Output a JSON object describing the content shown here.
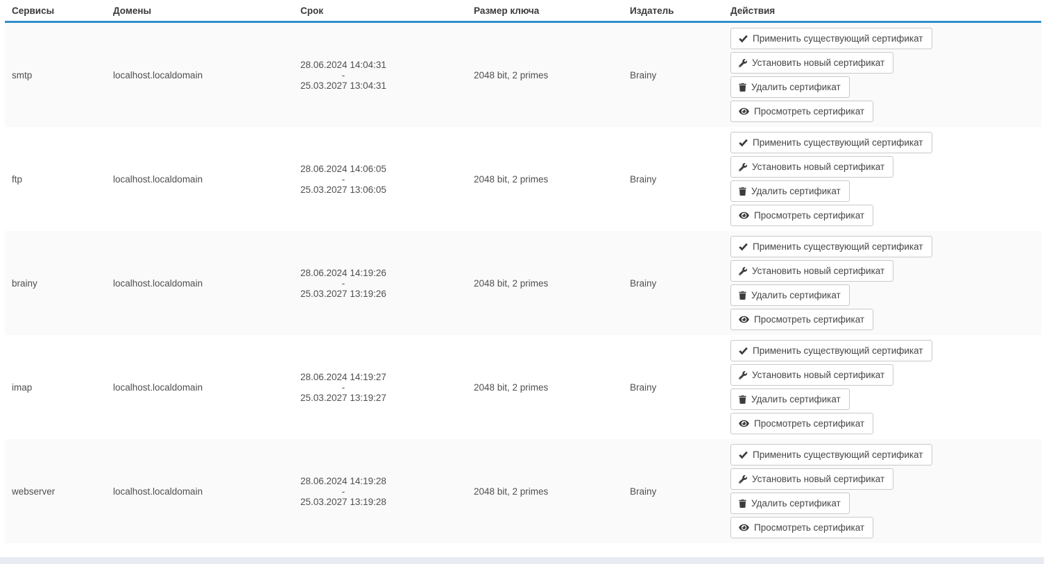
{
  "table": {
    "columns": [
      "Сервисы",
      "Домены",
      "Срок",
      "Размер ключа",
      "Издатель",
      "Действия"
    ],
    "actions": [
      {
        "icon": "check-icon",
        "label": "Применить существующий сертификат"
      },
      {
        "icon": "wrench-icon",
        "label": "Установить новый сертификат"
      },
      {
        "icon": "trash-icon",
        "label": "Удалить сертификат"
      },
      {
        "icon": "eye-icon",
        "label": "Просмотреть сертификат"
      }
    ],
    "rows": [
      {
        "service": "smtp",
        "domain": "localhost.localdomain",
        "valid_from": "28.06.2024 14:04:31",
        "separator": "-",
        "valid_to": "25.03.2027 13:04:31",
        "key_size": "2048 bit, 2 primes",
        "issuer": "Brainy"
      },
      {
        "service": "ftp",
        "domain": "localhost.localdomain",
        "valid_from": "28.06.2024 14:06:05",
        "separator": "-",
        "valid_to": "25.03.2027 13:06:05",
        "key_size": "2048 bit, 2 primes",
        "issuer": "Brainy"
      },
      {
        "service": "brainy",
        "domain": "localhost.localdomain",
        "valid_from": "28.06.2024 14:19:26",
        "separator": "-",
        "valid_to": "25.03.2027 13:19:26",
        "key_size": "2048 bit, 2 primes",
        "issuer": "Brainy"
      },
      {
        "service": "imap",
        "domain": "localhost.localdomain",
        "valid_from": "28.06.2024 14:19:27",
        "separator": "-",
        "valid_to": "25.03.2027 13:19:27",
        "key_size": "2048 bit, 2 primes",
        "issuer": "Brainy"
      },
      {
        "service": "webserver",
        "domain": "localhost.localdomain",
        "valid_from": "28.06.2024 14:19:28",
        "separator": "-",
        "valid_to": "25.03.2027 13:19:28",
        "key_size": "2048 bit, 2 primes",
        "issuer": "Brainy"
      }
    ]
  },
  "colors": {
    "accent": "#2f8dca",
    "stripe": "#fafafa",
    "footer": "#e8ebf2"
  }
}
